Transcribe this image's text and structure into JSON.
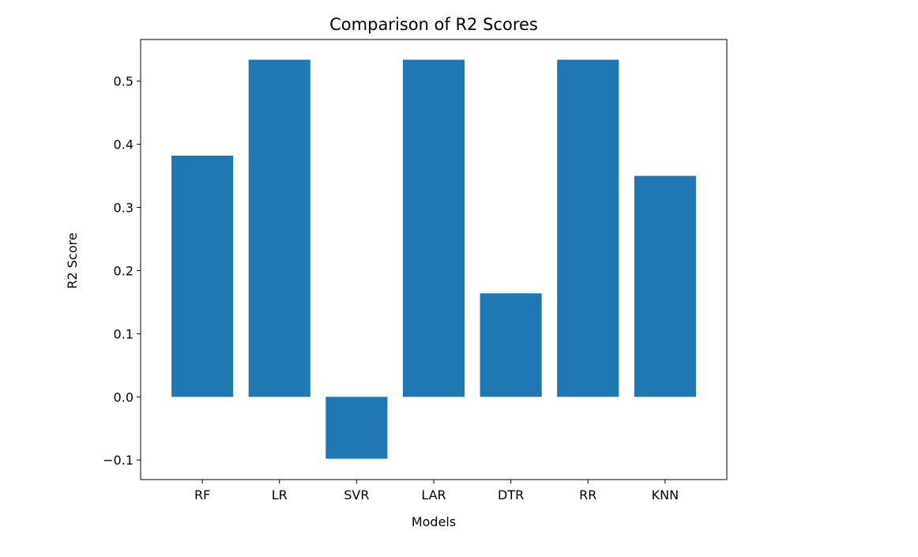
{
  "chart_data": {
    "type": "bar",
    "title": "Comparison of R2 Scores",
    "xlabel": "Models",
    "ylabel": "R2 Score",
    "categories": [
      "RF",
      "LR",
      "SVR",
      "LAR",
      "DTR",
      "RR",
      "KNN"
    ],
    "values": [
      0.382,
      0.534,
      -0.098,
      0.534,
      0.164,
      0.534,
      0.35
    ],
    "ylim": [
      -0.131,
      0.566
    ],
    "yticks": [
      -0.1,
      0.0,
      0.1,
      0.2,
      0.3,
      0.4,
      0.5
    ],
    "ytick_labels": [
      "−0.1",
      "0.0",
      "0.1",
      "0.2",
      "0.3",
      "0.4",
      "0.5"
    ],
    "grid": false,
    "bar_color": "#1f77b4"
  }
}
